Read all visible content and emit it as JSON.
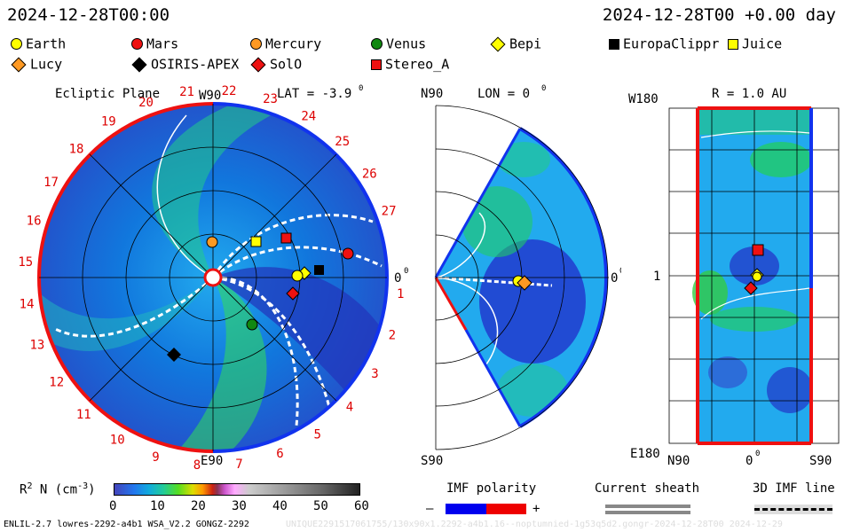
{
  "header": {
    "left_time": "2024-12-28T00:00",
    "right_time": "2024-12-28T00 +0.00 day"
  },
  "legend": [
    {
      "label": "Earth",
      "shape": "circle",
      "color": "#ffff00"
    },
    {
      "label": "Mars",
      "shape": "circle",
      "color": "#ee1111"
    },
    {
      "label": "Mercury",
      "shape": "circle",
      "color": "#ff9922"
    },
    {
      "label": "Venus",
      "shape": "circle",
      "color": "#118811"
    },
    {
      "label": "Bepi",
      "shape": "diamond",
      "color": "#ffff00"
    },
    {
      "label": "EuropaClippr",
      "shape": "square",
      "color": "#000000"
    },
    {
      "label": "Juice",
      "shape": "square",
      "color": "#ffff00"
    },
    {
      "label": "Lucy",
      "shape": "diamond",
      "color": "#ff9922"
    },
    {
      "label": "OSIRIS-APEX",
      "shape": "diamond",
      "color": "#000000"
    },
    {
      "label": "SolO",
      "shape": "diamond",
      "color": "#ee1111"
    },
    {
      "label": "Stereo_A",
      "shape": "square",
      "color": "#ee1111"
    }
  ],
  "panels": {
    "ecliptic": {
      "title": "Ecliptic Plane",
      "w90": "W90",
      "lat": "LAT = -3.9",
      "deg": "0",
      "zero_label": "0",
      "e90": "E90",
      "sectors": [
        "1",
        "2",
        "3",
        "4",
        "5",
        "6",
        "7",
        "8",
        "9",
        "10",
        "11",
        "12",
        "13",
        "14",
        "15",
        "16",
        "17",
        "18",
        "19",
        "20",
        "21",
        "22",
        "23",
        "24",
        "25",
        "26",
        "27"
      ]
    },
    "meridional": {
      "n90": "N90",
      "lon": "LON = 0",
      "deg": "0",
      "zero_label": "0",
      "s90": "S90"
    },
    "radial": {
      "w180": "W180",
      "r": "R = 1.0 AU",
      "one": "1",
      "e180": "E180",
      "n90": "N90",
      "zero": "0",
      "s90": "S90"
    }
  },
  "colorbar": {
    "label_r": "R",
    "label_sup": "2",
    "label_n": "N (cm",
    "label_exp": "-3",
    "label_close": ")",
    "ticks": [
      "0",
      "10",
      "20",
      "30",
      "40",
      "50",
      "60"
    ],
    "range": [
      0,
      60
    ]
  },
  "imf": {
    "label": "IMF polarity",
    "minus": "–",
    "plus": "+",
    "neg_color": "#0000ee",
    "pos_color": "#ee0000"
  },
  "current_sheath": {
    "label": "Current sheath"
  },
  "imf_line": {
    "label": "3D IMF line"
  },
  "footer": {
    "left": "ENLIL-2.7 lowres-2292-a4b1 WSA_V2.2 GONGZ-2292",
    "right": "UNIQUE2291517061755/130x90x1.2292-a4b1.16--noptumnied-1g53q5d2.gongr-2024-12-28T00    2024-12-29"
  }
}
